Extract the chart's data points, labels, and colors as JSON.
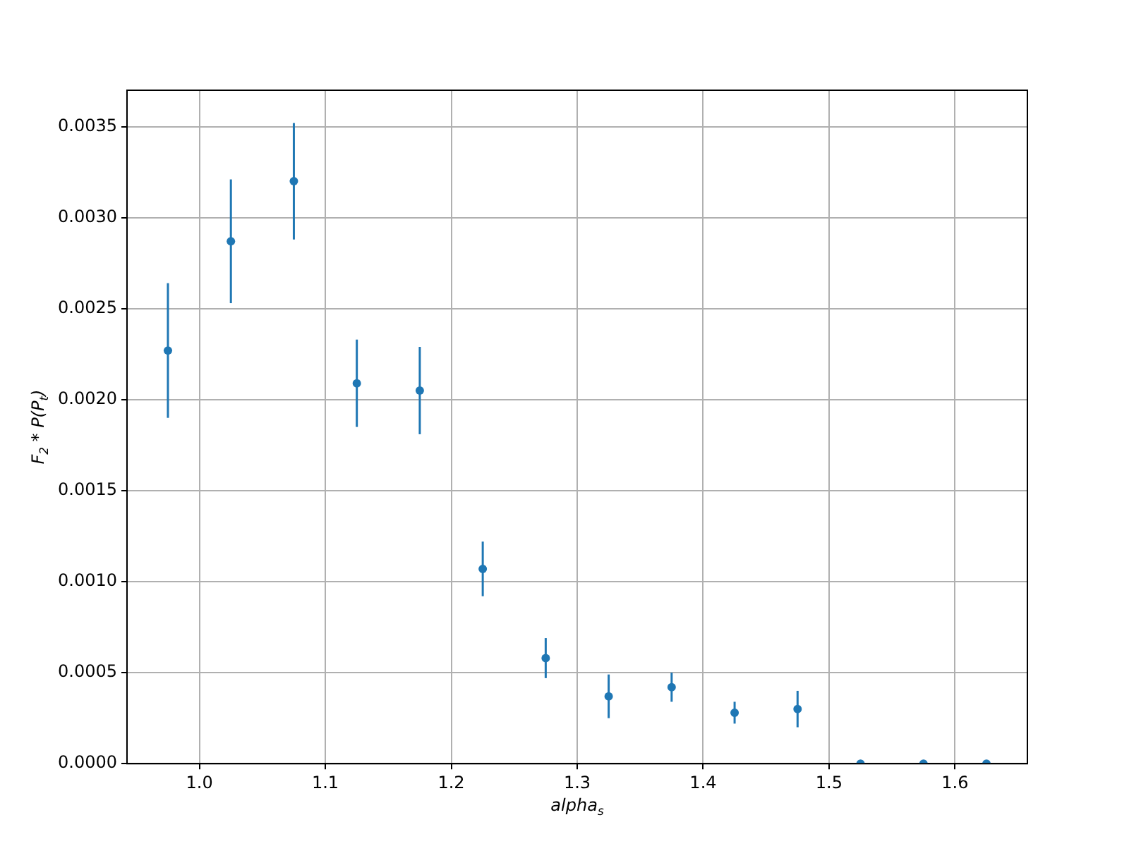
{
  "chart_data": {
    "type": "scatter",
    "xlabel": "alpha$_{s}$",
    "ylabel": "F$_{2}$ * P(P$_{t}$)",
    "x": [
      0.975,
      1.025,
      1.075,
      1.125,
      1.175,
      1.225,
      1.275,
      1.325,
      1.375,
      1.425,
      1.475,
      1.525,
      1.575,
      1.625
    ],
    "series": [
      {
        "color": "#1f77b4",
        "values": [
          0.00227,
          0.00287,
          0.0032,
          0.00209,
          0.00205,
          0.00107,
          0.00058,
          0.00037,
          0.00042,
          0.00028,
          0.0003,
          0,
          0,
          0
        ],
        "errors": [
          0.00037,
          0.00034,
          0.00032,
          0.00024,
          0.00024,
          0.00015,
          0.00011,
          0.00012,
          8e-05,
          6e-05,
          0.0001,
          0,
          0,
          0
        ]
      }
    ],
    "xlim": [
      0.9425,
      1.6575
    ],
    "ylim": [
      0,
      0.0037
    ],
    "xticks": [
      {
        "value": 1,
        "label": "1.0"
      },
      {
        "value": 1.1,
        "label": "1.1"
      },
      {
        "value": 1.2,
        "label": "1.2"
      },
      {
        "value": 1.3,
        "label": "1.3"
      },
      {
        "value": 1.4,
        "label": "1.4"
      },
      {
        "value": 1.5,
        "label": "1.5"
      },
      {
        "value": 1.6,
        "label": "1.6"
      }
    ],
    "yticks": [
      {
        "value": 0,
        "label": "0.0000"
      },
      {
        "value": 0.0005,
        "label": "0.0005"
      },
      {
        "value": 0.001,
        "label": "0.0010"
      },
      {
        "value": 0.0015,
        "label": "0.0015"
      },
      {
        "value": 0.002,
        "label": "0.0020"
      },
      {
        "value": 0.0025,
        "label": "0.0025"
      },
      {
        "value": 0.003,
        "label": "0.0030"
      },
      {
        "value": 0.0035,
        "label": "0.0035"
      }
    ],
    "grid": true,
    "legend": false,
    "marker": "circle"
  }
}
